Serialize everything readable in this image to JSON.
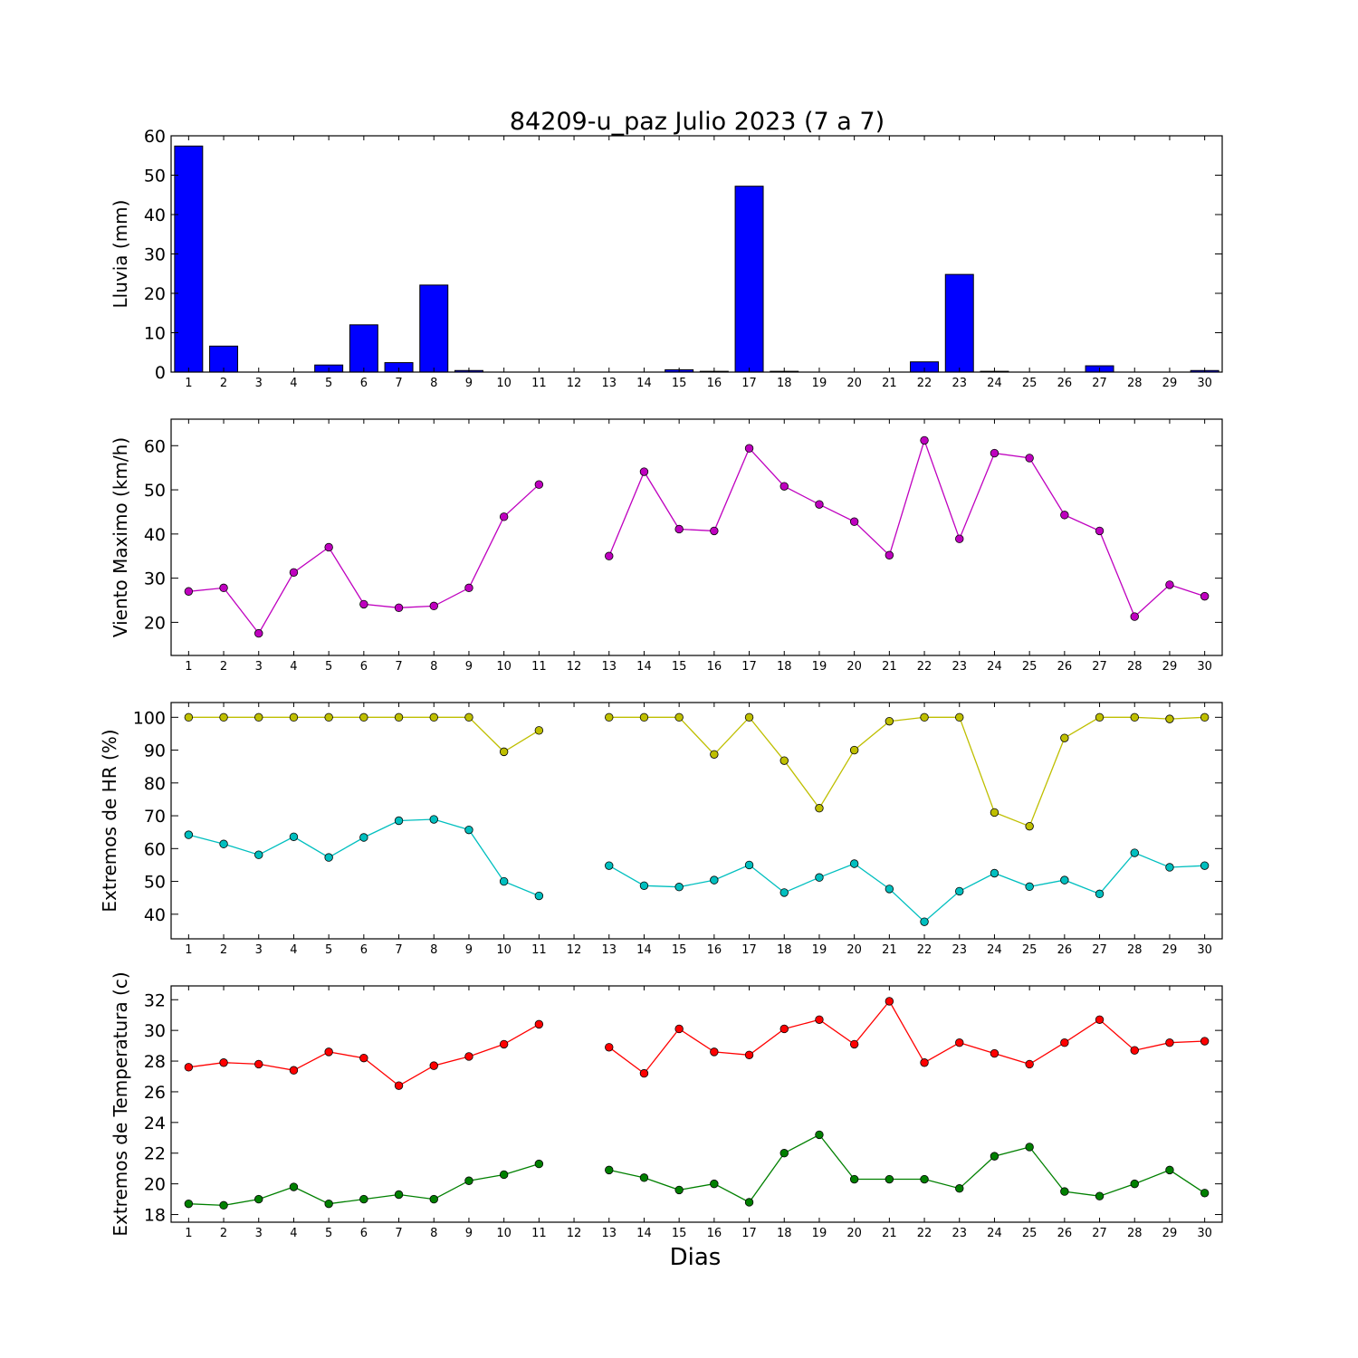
{
  "chart_data": [
    {
      "type": "bar",
      "title": "84209-u_paz Julio 2023  (7 a 7)",
      "ylabel": "Lluvia (mm)",
      "xlabel": "",
      "ylim": [
        0,
        60
      ],
      "yticks": [
        0,
        10,
        20,
        30,
        40,
        50,
        60
      ],
      "xlim": [
        0.5,
        30.5
      ],
      "categories": [
        1,
        2,
        3,
        4,
        5,
        6,
        7,
        8,
        9,
        10,
        11,
        12,
        13,
        14,
        15,
        16,
        17,
        18,
        19,
        20,
        21,
        22,
        23,
        24,
        25,
        26,
        27,
        28,
        29,
        30
      ],
      "color": "#0000ff",
      "values": [
        57.4,
        6.6,
        0,
        0,
        1.8,
        12.0,
        2.4,
        22.1,
        0.4,
        0,
        0,
        0,
        0,
        0,
        0.6,
        0.2,
        47.2,
        0.2,
        0,
        0,
        0,
        2.6,
        24.8,
        0.2,
        0,
        0,
        1.6,
        0,
        0,
        0.4
      ]
    },
    {
      "type": "line",
      "title": "",
      "ylabel": "Viento Maximo (km/h)",
      "xlabel": "",
      "ylim": [
        12.5,
        66
      ],
      "yticks": [
        20,
        30,
        40,
        50,
        60
      ],
      "xlim": [
        0.5,
        30.5
      ],
      "x": [
        1,
        2,
        3,
        4,
        5,
        6,
        7,
        8,
        9,
        10,
        11,
        12,
        13,
        14,
        15,
        16,
        17,
        18,
        19,
        20,
        21,
        22,
        23,
        24,
        25,
        26,
        27,
        28,
        29,
        30
      ],
      "series": [
        {
          "color": "#bf00bf",
          "values": [
            27.0,
            27.8,
            17.5,
            31.3,
            37.0,
            24.1,
            23.3,
            23.7,
            27.8,
            43.9,
            51.2,
            null,
            35.0,
            54.1,
            41.1,
            40.7,
            59.4,
            50.8,
            46.7,
            42.8,
            35.2,
            61.2,
            38.9,
            58.3,
            57.2,
            44.3,
            40.7,
            21.3,
            28.5,
            25.9
          ]
        }
      ]
    },
    {
      "type": "line",
      "title": "",
      "ylabel": "Extremos de HR (%)",
      "xlabel": "",
      "ylim": [
        32.5,
        104.5
      ],
      "yticks": [
        40,
        50,
        60,
        70,
        80,
        90,
        100
      ],
      "xlim": [
        0.5,
        30.5
      ],
      "x": [
        1,
        2,
        3,
        4,
        5,
        6,
        7,
        8,
        9,
        10,
        11,
        12,
        13,
        14,
        15,
        16,
        17,
        18,
        19,
        20,
        21,
        22,
        23,
        24,
        25,
        26,
        27,
        28,
        29,
        30
      ],
      "series": [
        {
          "color": "#bfbf00",
          "values": [
            100,
            100,
            100,
            100,
            100,
            100,
            100,
            100,
            100,
            89.5,
            96,
            null,
            100,
            100,
            100,
            88.7,
            100,
            86.8,
            72.3,
            90,
            98.8,
            100,
            100,
            71,
            66.8,
            93.7,
            100,
            100,
            99.5,
            100
          ]
        },
        {
          "color": "#00bfbf",
          "values": [
            64.2,
            61.4,
            58.1,
            63.6,
            57.3,
            63.4,
            68.5,
            68.9,
            65.7,
            50.0,
            45.6,
            null,
            54.8,
            48.7,
            48.3,
            50.4,
            55.0,
            46.6,
            51.2,
            55.4,
            47.7,
            37.7,
            47.0,
            52.5,
            48.4,
            50.4,
            46.2,
            58.7,
            54.3,
            54.8
          ]
        }
      ]
    },
    {
      "type": "line",
      "title": "",
      "ylabel": "Extremos de Temperatura (c)",
      "xlabel": "Dias",
      "ylim": [
        17.5,
        32.9
      ],
      "yticks": [
        18,
        20,
        22,
        24,
        26,
        28,
        30,
        32
      ],
      "xlim": [
        0.5,
        30.5
      ],
      "x": [
        1,
        2,
        3,
        4,
        5,
        6,
        7,
        8,
        9,
        10,
        11,
        12,
        13,
        14,
        15,
        16,
        17,
        18,
        19,
        20,
        21,
        22,
        23,
        24,
        25,
        26,
        27,
        28,
        29,
        30
      ],
      "series": [
        {
          "color": "#ff0000",
          "values": [
            27.6,
            27.9,
            27.8,
            27.4,
            28.6,
            28.2,
            26.4,
            27.7,
            28.3,
            29.1,
            30.4,
            null,
            28.9,
            27.2,
            30.1,
            28.6,
            28.4,
            30.1,
            30.7,
            29.1,
            31.9,
            27.9,
            29.2,
            28.5,
            27.8,
            29.2,
            30.7,
            28.7,
            29.2,
            29.3
          ]
        },
        {
          "color": "#008000",
          "values": [
            18.7,
            18.6,
            19.0,
            19.8,
            18.7,
            19.0,
            19.3,
            19.0,
            20.2,
            20.6,
            21.3,
            null,
            20.9,
            20.4,
            19.6,
            20.0,
            18.8,
            22.0,
            23.2,
            20.3,
            20.3,
            20.3,
            19.7,
            21.8,
            22.4,
            19.5,
            19.2,
            20.0,
            20.9,
            19.4
          ]
        }
      ]
    }
  ]
}
